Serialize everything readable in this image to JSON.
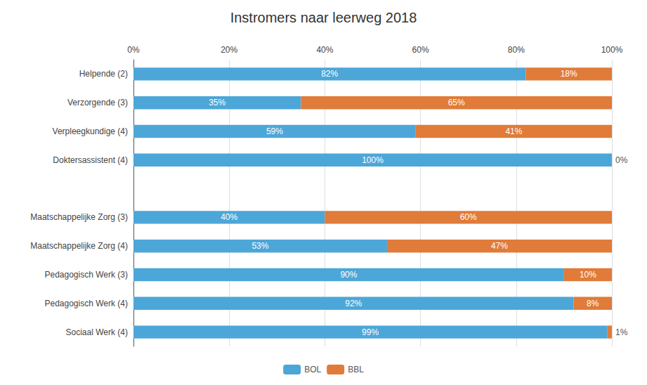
{
  "chart_data": {
    "type": "bar",
    "orientation": "horizontal",
    "stacked": true,
    "title": "Instromers naar leerweg 2018",
    "categories": [
      "Helpende (2)",
      "Verzorgende (3)",
      "Verpleegkundige (4)",
      "Doktersassistent (4)",
      null,
      "Maatschappelijke Zorg (3)",
      "Maatschappelijke Zorg (4)",
      "Pedagogisch Werk (3)",
      "Pedagogisch Werk (4)",
      "Sociaal Werk (4)"
    ],
    "series": [
      {
        "name": "BOL",
        "color": "#4da6d8",
        "values": [
          82,
          35,
          59,
          100,
          null,
          40,
          53,
          90,
          92,
          99
        ],
        "value_labels": [
          "82%",
          "35%",
          "59%",
          "100%",
          null,
          "40%",
          "53%",
          "90%",
          "92%",
          "99%"
        ]
      },
      {
        "name": "BBL",
        "color": "#e07b39",
        "values": [
          18,
          65,
          41,
          0,
          null,
          60,
          47,
          10,
          8,
          1
        ],
        "value_labels": [
          "18%",
          "65%",
          "41%",
          "0%",
          null,
          "60%",
          "47%",
          "10%",
          "8%",
          "1%"
        ]
      }
    ],
    "xlim": [
      0,
      100
    ],
    "xticks": [
      {
        "value": 0,
        "label": "0%"
      },
      {
        "value": 20,
        "label": "20%"
      },
      {
        "value": 40,
        "label": "40%"
      },
      {
        "value": 60,
        "label": "60%"
      },
      {
        "value": 80,
        "label": "80%"
      },
      {
        "value": 100,
        "label": "100%"
      }
    ],
    "grid": true,
    "legend": "bottom",
    "data_labels": true
  }
}
